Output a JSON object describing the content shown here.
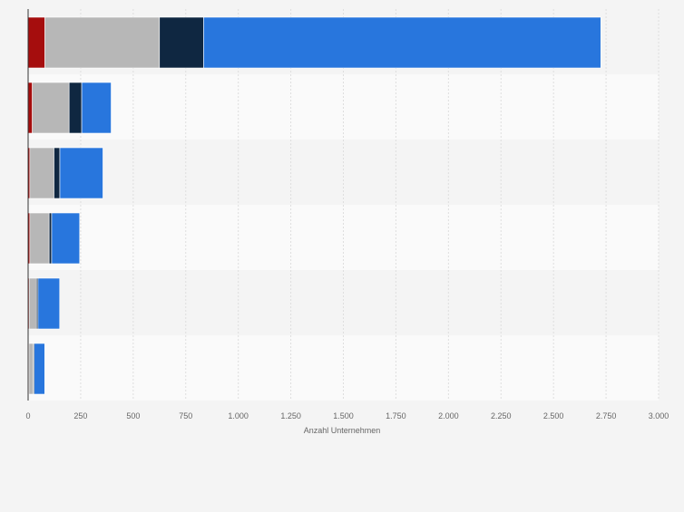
{
  "chart_data": {
    "type": "bar",
    "orientation": "horizontal",
    "stacked": true,
    "title": "",
    "xlabel": "Anzahl Unternehmen",
    "ylabel": "",
    "xlim": [
      0,
      3000
    ],
    "x_ticks": [
      0,
      250,
      500,
      750,
      1000,
      1250,
      1500,
      1750,
      2000,
      2250,
      2500,
      2750,
      3000
    ],
    "x_tick_labels": [
      "0",
      "250",
      "500",
      "750",
      "1.000",
      "1.250",
      "1.500",
      "1.750",
      "2.000",
      "2.250",
      "2.500",
      "2.750",
      "3.000"
    ],
    "categories": [
      "",
      "",
      "",
      "",
      "",
      ""
    ],
    "grid": true,
    "legend": "none",
    "series": [
      {
        "color": "#a50d0d",
        "values": [
          80,
          20,
          8,
          8,
          5,
          4
        ]
      },
      {
        "color": "#b7b7b7",
        "values": [
          545,
          175,
          115,
          92,
          35,
          20
        ]
      },
      {
        "color": "#0f2741",
        "values": [
          210,
          60,
          28,
          12,
          7,
          5
        ]
      },
      {
        "color": "#2876dd",
        "values": [
          1890,
          140,
          205,
          133,
          103,
          50
        ]
      }
    ]
  }
}
